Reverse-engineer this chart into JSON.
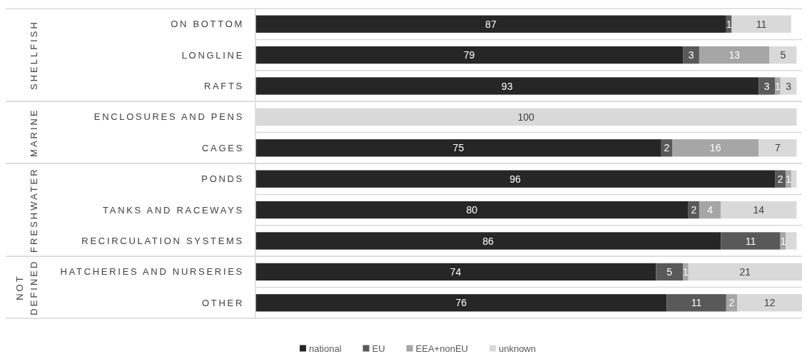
{
  "chart_data": [
    {
      "type": "bar",
      "orientation": "horizontal",
      "stacked": true,
      "ylabel": "SHELLFISH",
      "categories": [
        "ON BOTTOM",
        "LONGLINE",
        "RAFTS"
      ],
      "series": [
        {
          "color": "#262626",
          "values": [
            87,
            79,
            93
          ],
          "value_labels": [
            "87",
            "79",
            "93"
          ]
        },
        {
          "color": "#595959",
          "values": [
            1,
            3,
            3
          ],
          "value_labels": [
            "1",
            "3",
            "3"
          ]
        },
        {
          "color": "#a6a6a6",
          "values": [
            0,
            13,
            1
          ],
          "value_labels": [
            null,
            "13",
            "1"
          ]
        },
        {
          "color": "#d9d9d9",
          "values": [
            11,
            5,
            3
          ],
          "value_labels": [
            "11",
            "5",
            "3"
          ]
        }
      ],
      "xlim": [
        0,
        101
      ],
      "tick_labels": "y",
      "grid": "y"
    },
    {
      "type": "bar",
      "orientation": "horizontal",
      "stacked": true,
      "ylabel": "MARINE",
      "categories": [
        "ENCLOSURES AND PENS",
        "CAGES"
      ],
      "series": [
        {
          "color": "#262626",
          "values": [
            0,
            75
          ],
          "value_labels": [
            null,
            "75"
          ]
        },
        {
          "color": "#595959",
          "values": [
            0,
            2
          ],
          "value_labels": [
            null,
            "2"
          ]
        },
        {
          "color": "#a6a6a6",
          "values": [
            0,
            16
          ],
          "value_labels": [
            null,
            "16"
          ]
        },
        {
          "color": "#d9d9d9",
          "values": [
            100,
            7
          ],
          "value_labels": [
            "100",
            "7"
          ]
        }
      ],
      "xlim": [
        0,
        101
      ],
      "tick_labels": "y",
      "grid": "y"
    },
    {
      "type": "bar",
      "orientation": "horizontal",
      "stacked": true,
      "ylabel": "FRESHWATER",
      "categories": [
        "PONDS",
        "TANKS AND RACEWAYS",
        "RECIRCULATION SYSTEMS"
      ],
      "series": [
        {
          "color": "#262626",
          "values": [
            96,
            80,
            86
          ],
          "value_labels": [
            "96",
            "80",
            "86"
          ]
        },
        {
          "color": "#595959",
          "values": [
            2,
            2,
            11
          ],
          "value_labels": [
            "2",
            "2",
            "11"
          ]
        },
        {
          "color": "#a6a6a6",
          "values": [
            1,
            4,
            1
          ],
          "value_labels": [
            "1",
            "4",
            "1"
          ]
        },
        {
          "color": "#d9d9d9",
          "values": [
            1,
            14,
            2
          ],
          "value_labels": [
            null,
            "14",
            null
          ]
        }
      ],
      "xlim": [
        0,
        101
      ],
      "tick_labels": "y",
      "grid": "y"
    },
    {
      "type": "bar",
      "orientation": "horizontal",
      "stacked": true,
      "ylabel": "NOT DEFINED",
      "categories": [
        "HATCHERIES AND NURSERIES",
        "OTHER"
      ],
      "series": [
        {
          "name": "national",
          "color": "#262626",
          "values": [
            74,
            76
          ],
          "value_labels": [
            "74",
            "76"
          ]
        },
        {
          "name": "EU",
          "color": "#595959",
          "values": [
            5,
            11
          ],
          "value_labels": [
            "5",
            "11"
          ]
        },
        {
          "name": "EEA+nonEU",
          "color": "#a6a6a6",
          "values": [
            1,
            2
          ],
          "value_labels": [
            "1",
            "2"
          ]
        },
        {
          "name": "unknown",
          "color": "#d9d9d9",
          "values": [
            21,
            12
          ],
          "value_labels": [
            "21",
            "12"
          ]
        }
      ],
      "xlim": [
        0,
        101
      ],
      "tick_labels": "y",
      "grid": "y",
      "legend": "bottom"
    }
  ]
}
